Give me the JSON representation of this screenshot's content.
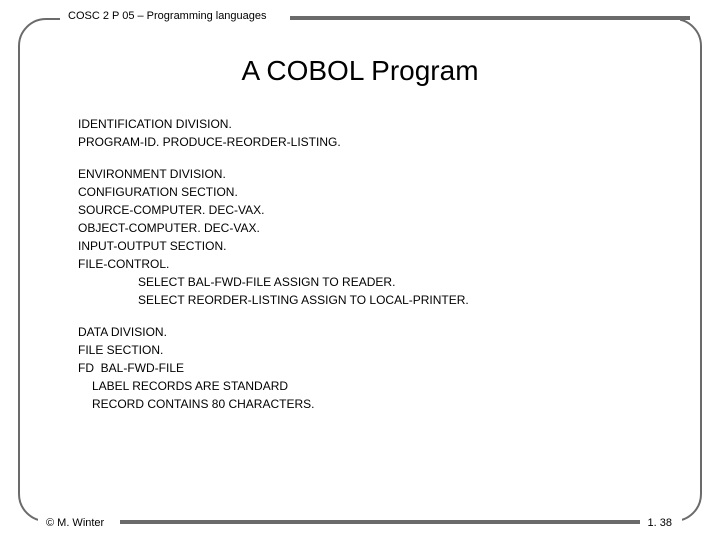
{
  "header": {
    "course": "COSC 2 P 05 – Programming languages"
  },
  "title": "A COBOL Program",
  "code": {
    "block1": [
      "IDENTIFICATION DIVISION.",
      "PROGRAM-ID. PRODUCE-REORDER-LISTING."
    ],
    "block2": [
      "ENVIRONMENT DIVISION.",
      "CONFIGURATION SECTION.",
      "SOURCE-COMPUTER. DEC-VAX.",
      "OBJECT-COMPUTER. DEC-VAX.",
      "INPUT-OUTPUT SECTION.",
      "FILE-CONTROL."
    ],
    "block2_indent": [
      "SELECT BAL-FWD-FILE ASSIGN TO READER.",
      "SELECT REORDER-LISTING ASSIGN TO LOCAL-PRINTER."
    ],
    "block3": [
      "DATA DIVISION.",
      "FILE SECTION.",
      "FD  BAL-FWD-FILE"
    ],
    "block3_indent": [
      "LABEL RECORDS ARE STANDARD",
      "RECORD CONTAINS 80 CHARACTERS."
    ]
  },
  "footer": {
    "copyright": "© M. Winter",
    "page": "1. 38"
  },
  "style": {
    "background": "#ffffff",
    "frame_border_color": "#6b6b6b",
    "frame_border_width": 2,
    "frame_radius": 28,
    "bar_color": "#6b6b6b",
    "title_fontsize": 28,
    "body_fontsize": 12,
    "header_fontsize": 11,
    "footer_fontsize": 11,
    "text_color": "#000000"
  }
}
